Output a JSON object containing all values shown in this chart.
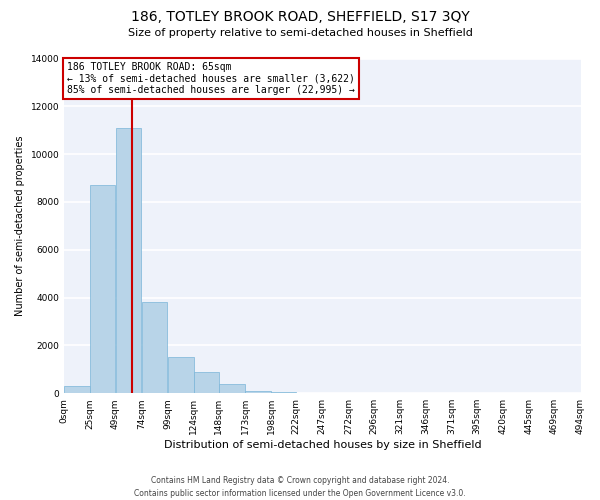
{
  "title": "186, TOTLEY BROOK ROAD, SHEFFIELD, S17 3QY",
  "subtitle": "Size of property relative to semi-detached houses in Sheffield",
  "bar_values": [
    300,
    8700,
    11100,
    3800,
    1500,
    900,
    400,
    100,
    50,
    0,
    0,
    0,
    0,
    0,
    0,
    0,
    0,
    0,
    0,
    0
  ],
  "bin_edges": [
    0,
    25,
    49,
    74,
    99,
    124,
    148,
    173,
    198,
    222,
    247,
    272,
    296,
    321,
    346,
    371,
    395,
    420,
    445,
    469,
    494
  ],
  "bin_labels": [
    "0sqm",
    "25sqm",
    "49sqm",
    "74sqm",
    "99sqm",
    "124sqm",
    "148sqm",
    "173sqm",
    "198sqm",
    "222sqm",
    "247sqm",
    "272sqm",
    "296sqm",
    "321sqm",
    "346sqm",
    "371sqm",
    "395sqm",
    "420sqm",
    "445sqm",
    "469sqm",
    "494sqm"
  ],
  "bar_color": "#b8d4e8",
  "bar_edge_color": "#7ab5d8",
  "vline_x": 65,
  "vline_color": "#cc0000",
  "annotation_text": "186 TOTLEY BROOK ROAD: 65sqm\n← 13% of semi-detached houses are smaller (3,622)\n85% of semi-detached houses are larger (22,995) →",
  "annotation_box_color": "#cc0000",
  "xlabel": "Distribution of semi-detached houses by size in Sheffield",
  "ylabel": "Number of semi-detached properties",
  "ylim": [
    0,
    14000
  ],
  "yticks": [
    0,
    2000,
    4000,
    6000,
    8000,
    10000,
    12000,
    14000
  ],
  "footer_line1": "Contains HM Land Registry data © Crown copyright and database right 2024.",
  "footer_line2": "Contains public sector information licensed under the Open Government Licence v3.0.",
  "bg_color": "#ffffff",
  "plot_bg_color": "#eef2fa",
  "grid_color": "#ffffff",
  "title_fontsize": 10,
  "subtitle_fontsize": 8,
  "xlabel_fontsize": 8,
  "ylabel_fontsize": 7,
  "tick_fontsize": 6.5,
  "annotation_fontsize": 7,
  "footer_fontsize": 5.5
}
